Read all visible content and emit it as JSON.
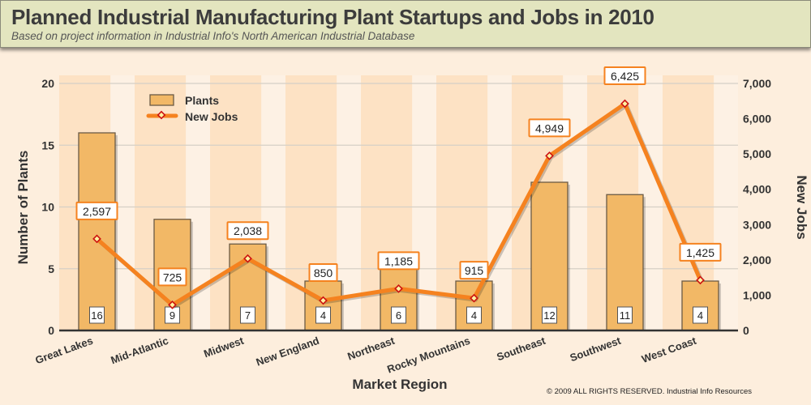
{
  "header": {
    "title": "Planned Industrial Manufacturing Plant Startups and Jobs in 2010",
    "subtitle": "Based on project information in Industrial Info's North American Industrial Database"
  },
  "copyright": "© 2009 ALL RIGHTS RESERVED. Industrial Info Resources",
  "chart_data": {
    "type": "bar+line",
    "categories": [
      "Great Lakes",
      "Mid-Atlantic",
      "Midwest",
      "New England",
      "Northeast",
      "Rocky Mountains",
      "Southeast",
      "Southwest",
      "West Coast"
    ],
    "series": [
      {
        "name": "Plants",
        "type": "bar",
        "axis": "left",
        "values": [
          16,
          9,
          7,
          4,
          6,
          4,
          12,
          11,
          4
        ],
        "labels": [
          "16",
          "9",
          "7",
          "4",
          "6",
          "4",
          "12",
          "11",
          "4"
        ]
      },
      {
        "name": "New Jobs",
        "type": "line",
        "axis": "right",
        "values": [
          2597,
          725,
          2038,
          850,
          1185,
          915,
          4949,
          6425,
          1425
        ],
        "labels": [
          "2,597",
          "725",
          "2,038",
          "850",
          "1,185",
          "915",
          "4,949",
          "6,425",
          "1,425"
        ]
      }
    ],
    "xlabel": "Market Region",
    "ylabel": "Number of Plants",
    "y2label": "New Jobs",
    "ylim": [
      0,
      20
    ],
    "y2lim": [
      0,
      7000
    ],
    "yticks": [
      "0",
      "5",
      "10",
      "15",
      "20"
    ],
    "y2ticks": [
      "0",
      "1,000",
      "2,000",
      "3,000",
      "4,000",
      "5,000",
      "6,000",
      "7,000"
    ],
    "legend": "top-left",
    "grid": true,
    "colors": {
      "bar": "#f2b866",
      "bar_border": "#6b5a45",
      "line": "#f5821f",
      "marker": "#cc1111"
    }
  }
}
